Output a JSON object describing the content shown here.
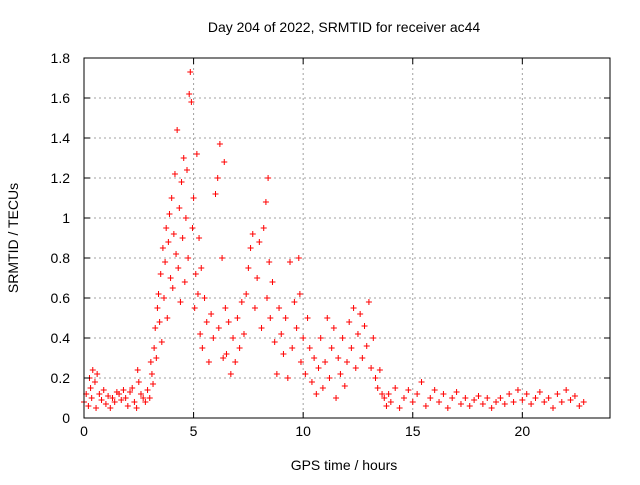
{
  "chart_data": {
    "type": "scatter",
    "title": "Day 204 of 2022, SRMTID for receiver ac44",
    "xlabel": "GPS time / hours",
    "ylabel": "SRMTID / TECUs",
    "xlim": [
      0,
      24
    ],
    "ylim": [
      0,
      1.8
    ],
    "x_ticks": [
      0,
      5,
      10,
      15,
      20
    ],
    "x_tick_labels": [
      "0",
      "5",
      "10",
      "15",
      "20"
    ],
    "y_ticks": [
      0,
      0.2,
      0.4,
      0.6,
      0.8,
      1.0,
      1.2,
      1.4,
      1.6,
      1.8
    ],
    "y_tick_labels": [
      "0",
      "0.2",
      "0.4",
      "0.6",
      "0.8",
      "1",
      "1.2",
      "1.4",
      "1.6",
      "1.8"
    ],
    "grid": true,
    "marker": "+",
    "color": "#ff0000",
    "series": [
      {
        "name": "SRMTID",
        "points": [
          [
            0.0,
            0.08
          ],
          [
            0.1,
            0.12
          ],
          [
            0.2,
            0.06
          ],
          [
            0.25,
            0.2
          ],
          [
            0.3,
            0.15
          ],
          [
            0.35,
            0.1
          ],
          [
            0.4,
            0.24
          ],
          [
            0.5,
            0.18
          ],
          [
            0.55,
            0.05
          ],
          [
            0.6,
            0.22
          ],
          [
            0.7,
            0.12
          ],
          [
            0.8,
            0.09
          ],
          [
            0.9,
            0.14
          ],
          [
            1.0,
            0.07
          ],
          [
            1.1,
            0.11
          ],
          [
            1.2,
            0.05
          ],
          [
            1.3,
            0.1
          ],
          [
            1.4,
            0.08
          ],
          [
            1.5,
            0.13
          ],
          [
            1.6,
            0.12
          ],
          [
            1.7,
            0.09
          ],
          [
            1.8,
            0.14
          ],
          [
            1.9,
            0.1
          ],
          [
            2.0,
            0.06
          ],
          [
            2.1,
            0.13
          ],
          [
            2.2,
            0.15
          ],
          [
            2.3,
            0.08
          ],
          [
            2.4,
            0.05
          ],
          [
            2.45,
            0.24
          ],
          [
            2.5,
            0.18
          ],
          [
            2.6,
            0.12
          ],
          [
            2.7,
            0.1
          ],
          [
            2.8,
            0.08
          ],
          [
            2.9,
            0.14
          ],
          [
            3.0,
            0.1
          ],
          [
            3.05,
            0.28
          ],
          [
            3.1,
            0.22
          ],
          [
            3.15,
            0.17
          ],
          [
            3.2,
            0.35
          ],
          [
            3.25,
            0.45
          ],
          [
            3.3,
            0.3
          ],
          [
            3.35,
            0.55
          ],
          [
            3.4,
            0.62
          ],
          [
            3.45,
            0.48
          ],
          [
            3.5,
            0.72
          ],
          [
            3.55,
            0.38
          ],
          [
            3.6,
            0.85
          ],
          [
            3.65,
            0.6
          ],
          [
            3.7,
            0.78
          ],
          [
            3.75,
            0.95
          ],
          [
            3.8,
            0.5
          ],
          [
            3.85,
            0.88
          ],
          [
            3.9,
            1.02
          ],
          [
            3.95,
            0.7
          ],
          [
            4.0,
            1.1
          ],
          [
            4.05,
            0.65
          ],
          [
            4.1,
            0.92
          ],
          [
            4.15,
            1.22
          ],
          [
            4.2,
            0.82
          ],
          [
            4.25,
            1.44
          ],
          [
            4.3,
            0.75
          ],
          [
            4.35,
            1.05
          ],
          [
            4.4,
            0.58
          ],
          [
            4.45,
            1.18
          ],
          [
            4.5,
            0.9
          ],
          [
            4.55,
            1.3
          ],
          [
            4.6,
            0.68
          ],
          [
            4.65,
            1.0
          ],
          [
            4.7,
            1.24
          ],
          [
            4.75,
            0.8
          ],
          [
            4.8,
            1.62
          ],
          [
            4.85,
            1.73
          ],
          [
            4.9,
            1.58
          ],
          [
            4.95,
            0.95
          ],
          [
            5.0,
            1.1
          ],
          [
            5.05,
            0.55
          ],
          [
            5.1,
            0.72
          ],
          [
            5.15,
            1.32
          ],
          [
            5.2,
            0.62
          ],
          [
            5.25,
            0.9
          ],
          [
            5.3,
            0.42
          ],
          [
            5.35,
            0.75
          ],
          [
            5.4,
            0.35
          ],
          [
            5.5,
            0.6
          ],
          [
            5.6,
            0.48
          ],
          [
            5.7,
            0.28
          ],
          [
            5.8,
            0.52
          ],
          [
            5.9,
            0.4
          ],
          [
            6.0,
            1.12
          ],
          [
            6.1,
            1.2
          ],
          [
            6.15,
            0.45
          ],
          [
            6.2,
            1.37
          ],
          [
            6.3,
            0.8
          ],
          [
            6.35,
            0.3
          ],
          [
            6.4,
            1.28
          ],
          [
            6.45,
            0.55
          ],
          [
            6.5,
            0.32
          ],
          [
            6.6,
            0.48
          ],
          [
            6.7,
            0.22
          ],
          [
            6.8,
            0.4
          ],
          [
            6.9,
            0.28
          ],
          [
            7.0,
            0.5
          ],
          [
            7.1,
            0.35
          ],
          [
            7.2,
            0.58
          ],
          [
            7.3,
            0.42
          ],
          [
            7.4,
            0.62
          ],
          [
            7.5,
            0.75
          ],
          [
            7.6,
            0.85
          ],
          [
            7.7,
            0.92
          ],
          [
            7.8,
            0.55
          ],
          [
            7.9,
            0.7
          ],
          [
            8.0,
            0.88
          ],
          [
            8.1,
            0.45
          ],
          [
            8.2,
            0.95
          ],
          [
            8.3,
            1.08
          ],
          [
            8.35,
            0.6
          ],
          [
            8.4,
            1.2
          ],
          [
            8.45,
            0.78
          ],
          [
            8.5,
            0.5
          ],
          [
            8.6,
            0.68
          ],
          [
            8.7,
            0.38
          ],
          [
            8.8,
            0.22
          ],
          [
            8.9,
            0.55
          ],
          [
            9.0,
            0.42
          ],
          [
            9.1,
            0.32
          ],
          [
            9.2,
            0.5
          ],
          [
            9.3,
            0.2
          ],
          [
            9.4,
            0.78
          ],
          [
            9.5,
            0.35
          ],
          [
            9.6,
            0.58
          ],
          [
            9.7,
            0.45
          ],
          [
            9.8,
            0.8
          ],
          [
            9.85,
            0.62
          ],
          [
            9.9,
            0.28
          ],
          [
            10.0,
            0.4
          ],
          [
            10.1,
            0.22
          ],
          [
            10.2,
            0.5
          ],
          [
            10.3,
            0.35
          ],
          [
            10.4,
            0.18
          ],
          [
            10.5,
            0.3
          ],
          [
            10.6,
            0.12
          ],
          [
            10.7,
            0.25
          ],
          [
            10.8,
            0.4
          ],
          [
            10.9,
            0.15
          ],
          [
            11.0,
            0.28
          ],
          [
            11.1,
            0.5
          ],
          [
            11.2,
            0.2
          ],
          [
            11.3,
            0.35
          ],
          [
            11.4,
            0.45
          ],
          [
            11.5,
            0.1
          ],
          [
            11.6,
            0.3
          ],
          [
            11.7,
            0.22
          ],
          [
            11.8,
            0.4
          ],
          [
            11.9,
            0.16
          ],
          [
            12.0,
            0.28
          ],
          [
            12.1,
            0.48
          ],
          [
            12.2,
            0.35
          ],
          [
            12.3,
            0.55
          ],
          [
            12.4,
            0.25
          ],
          [
            12.5,
            0.42
          ],
          [
            12.6,
            0.52
          ],
          [
            12.7,
            0.3
          ],
          [
            12.8,
            0.46
          ],
          [
            12.9,
            0.36
          ],
          [
            13.0,
            0.58
          ],
          [
            13.1,
            0.25
          ],
          [
            13.2,
            0.4
          ],
          [
            13.3,
            0.2
          ],
          [
            13.4,
            0.15
          ],
          [
            13.5,
            0.24
          ],
          [
            13.6,
            0.12
          ],
          [
            13.7,
            0.1
          ],
          [
            13.8,
            0.06
          ],
          [
            13.9,
            0.12
          ],
          [
            14.0,
            0.08
          ],
          [
            14.2,
            0.15
          ],
          [
            14.4,
            0.05
          ],
          [
            14.6,
            0.1
          ],
          [
            14.8,
            0.14
          ],
          [
            15.0,
            0.08
          ],
          [
            15.2,
            0.12
          ],
          [
            15.4,
            0.18
          ],
          [
            15.6,
            0.06
          ],
          [
            15.8,
            0.1
          ],
          [
            16.0,
            0.14
          ],
          [
            16.2,
            0.08
          ],
          [
            16.4,
            0.12
          ],
          [
            16.6,
            0.05
          ],
          [
            16.8,
            0.1
          ],
          [
            17.0,
            0.13
          ],
          [
            17.2,
            0.07
          ],
          [
            17.4,
            0.1
          ],
          [
            17.6,
            0.06
          ],
          [
            17.8,
            0.09
          ],
          [
            18.0,
            0.11
          ],
          [
            18.2,
            0.07
          ],
          [
            18.4,
            0.1
          ],
          [
            18.6,
            0.05
          ],
          [
            18.8,
            0.08
          ],
          [
            19.0,
            0.1
          ],
          [
            19.2,
            0.07
          ],
          [
            19.4,
            0.12
          ],
          [
            19.6,
            0.08
          ],
          [
            19.8,
            0.14
          ],
          [
            20.0,
            0.09
          ],
          [
            20.2,
            0.12
          ],
          [
            20.4,
            0.07
          ],
          [
            20.6,
            0.1
          ],
          [
            20.8,
            0.13
          ],
          [
            21.0,
            0.08
          ],
          [
            21.2,
            0.1
          ],
          [
            21.4,
            0.05
          ],
          [
            21.6,
            0.12
          ],
          [
            21.8,
            0.08
          ],
          [
            22.0,
            0.14
          ],
          [
            22.2,
            0.09
          ],
          [
            22.4,
            0.11
          ],
          [
            22.6,
            0.06
          ],
          [
            22.8,
            0.08
          ]
        ]
      }
    ]
  }
}
